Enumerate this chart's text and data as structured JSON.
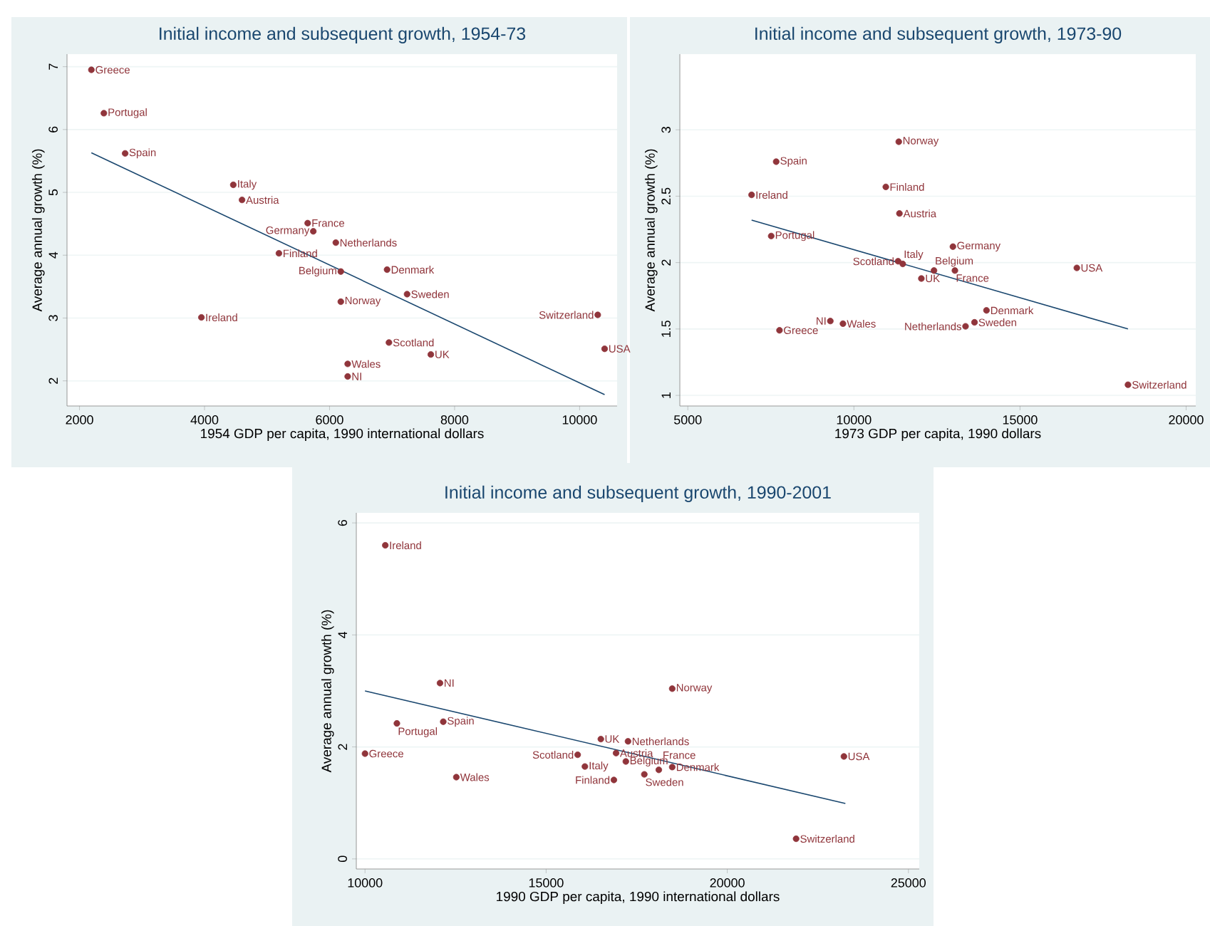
{
  "chart_data": [
    {
      "type": "scatter",
      "title": "Initial income and subsequent growth, 1954-73",
      "xlabel": "1954 GDP per capita, 1990 international dollars",
      "ylabel": "Average annual growth (%)",
      "xlim": [
        1800,
        10600
      ],
      "ylim": [
        1.6,
        7.2
      ],
      "xticks": [
        2000,
        4000,
        6000,
        8000,
        10000
      ],
      "yticks": [
        2,
        3,
        4,
        5,
        6,
        7
      ],
      "grid": "y",
      "series": [
        {
          "type": "scatter",
          "marker": "circle",
          "color": "#90353b",
          "x": [
            2190,
            2390,
            2730,
            4460,
            4600,
            5650,
            5740,
            6100,
            5190,
            6180,
            6920,
            7240,
            6180,
            3950,
            10290,
            10400,
            6950,
            7620,
            6290,
            6290
          ],
          "values": [
            6.95,
            6.26,
            5.62,
            5.12,
            4.88,
            4.51,
            4.38,
            4.2,
            4.03,
            3.74,
            3.77,
            3.38,
            3.26,
            3.01,
            3.05,
            2.51,
            2.61,
            2.42,
            2.27,
            2.07
          ]
        },
        {
          "type": "line",
          "marker": "none",
          "color": "#1a476f",
          "x": [
            2190,
            10400
          ],
          "values": [
            5.63,
            1.78
          ]
        }
      ],
      "annotations": [
        {
          "text": "Greece",
          "x": 2190,
          "y": 6.95
        },
        {
          "text": "Portugal",
          "x": 2390,
          "y": 6.26
        },
        {
          "text": "Spain",
          "x": 2730,
          "y": 5.62
        },
        {
          "text": "Italy",
          "x": 4460,
          "y": 5.12
        },
        {
          "text": "Austria",
          "x": 4600,
          "y": 4.88
        },
        {
          "text": "France",
          "x": 5650,
          "y": 4.51
        },
        {
          "text": "Germany",
          "x": 5740,
          "y": 4.38
        },
        {
          "text": "Netherlands",
          "x": 6100,
          "y": 4.2
        },
        {
          "text": "Finland",
          "x": 5190,
          "y": 4.03
        },
        {
          "text": "Belgium",
          "x": 6180,
          "y": 3.74
        },
        {
          "text": "Denmark",
          "x": 6920,
          "y": 3.77
        },
        {
          "text": "Sweden",
          "x": 7240,
          "y": 3.38
        },
        {
          "text": "Norway",
          "x": 6180,
          "y": 3.26
        },
        {
          "text": "Ireland",
          "x": 3950,
          "y": 3.01
        },
        {
          "text": "Switzerland",
          "x": 10290,
          "y": 3.05
        },
        {
          "text": "USA",
          "x": 10400,
          "y": 2.51
        },
        {
          "text": "Scotland",
          "x": 6950,
          "y": 2.61
        },
        {
          "text": "UK",
          "x": 7620,
          "y": 2.42
        },
        {
          "text": "Wales",
          "x": 6290,
          "y": 2.27
        },
        {
          "text": "NI",
          "x": 6290,
          "y": 2.07
        }
      ]
    },
    {
      "type": "scatter",
      "title": "Initial income and subsequent growth, 1973-90",
      "xlabel": "1973 GDP per capita, 1990 dollars",
      "ylabel": "Average annual growth (%)",
      "xlim": [
        4760,
        20290
      ],
      "ylim": [
        0.92,
        3.57
      ],
      "xticks": [
        5000,
        10000,
        15000,
        20000
      ],
      "yticks": [
        1,
        1.5,
        2,
        2.5,
        3
      ],
      "grid": "y",
      "series": [
        {
          "type": "scatter",
          "marker": "circle",
          "color": "#90353b",
          "x": [
            11350,
            7660,
            10960,
            6920,
            11370,
            7510,
            12980,
            11330,
            11470,
            12410,
            13040,
            16710,
            12030,
            13990,
            13630,
            13360,
            18250,
            7760,
            9290,
            9670
          ],
          "values": [
            2.91,
            2.76,
            2.57,
            2.51,
            2.37,
            2.2,
            2.12,
            2.01,
            1.99,
            1.94,
            1.94,
            1.96,
            1.88,
            1.64,
            1.55,
            1.52,
            1.08,
            1.49,
            1.56,
            1.54
          ]
        },
        {
          "type": "line",
          "marker": "none",
          "color": "#1a476f",
          "x": [
            6920,
            18250
          ],
          "values": [
            2.32,
            1.5
          ]
        }
      ],
      "annotations": [
        {
          "text": "Norway",
          "x": 11350,
          "y": 2.91
        },
        {
          "text": "Spain",
          "x": 7660,
          "y": 2.76
        },
        {
          "text": "Finland",
          "x": 10960,
          "y": 2.57
        },
        {
          "text": "Ireland",
          "x": 6920,
          "y": 2.51
        },
        {
          "text": "Austria",
          "x": 11370,
          "y": 2.37
        },
        {
          "text": "Portugal",
          "x": 7510,
          "y": 2.2
        },
        {
          "text": "Germany",
          "x": 12980,
          "y": 2.12
        },
        {
          "text": "Scotland",
          "x": 11330,
          "y": 2.01
        },
        {
          "text": "Italy",
          "x": 11470,
          "y": 1.99
        },
        {
          "text": "Belgium",
          "x": 12410,
          "y": 1.94
        },
        {
          "text": "France",
          "x": 13040,
          "y": 1.94
        },
        {
          "text": "USA",
          "x": 16710,
          "y": 1.96
        },
        {
          "text": "UK",
          "x": 12030,
          "y": 1.88
        },
        {
          "text": "Denmark",
          "x": 13990,
          "y": 1.64
        },
        {
          "text": "Sweden",
          "x": 13630,
          "y": 1.55
        },
        {
          "text": "Netherlands",
          "x": 13360,
          "y": 1.52
        },
        {
          "text": "Switzerland",
          "x": 18250,
          "y": 1.08
        },
        {
          "text": "Greece",
          "x": 7760,
          "y": 1.49
        },
        {
          "text": "NI",
          "x": 9290,
          "y": 1.56
        },
        {
          "text": "Wales",
          "x": 9670,
          "y": 1.54
        }
      ]
    },
    {
      "type": "scatter",
      "title": "Initial income and subsequent growth, 1990-2001",
      "xlabel": "1990 GDP per capita, 1990 international dollars",
      "ylabel": "Average annual growth (%)",
      "xlim": [
        9760,
        25300
      ],
      "ylim": [
        -0.18,
        6.18
      ],
      "xticks": [
        10000,
        15000,
        20000,
        25000
      ],
      "yticks": [
        0,
        2,
        4,
        6
      ],
      "grid": "y",
      "series": [
        {
          "type": "scatter",
          "marker": "circle",
          "color": "#90353b",
          "x": [
            10560,
            12070,
            18480,
            10880,
            12160,
            10000,
            12520,
            16510,
            17260,
            15870,
            16930,
            16070,
            17200,
            16870,
            17710,
            18110,
            18480,
            23220,
            21900
          ],
          "values": [
            5.6,
            3.14,
            3.04,
            2.42,
            2.45,
            1.88,
            1.46,
            2.14,
            2.1,
            1.86,
            1.89,
            1.65,
            1.74,
            1.41,
            1.51,
            1.59,
            1.64,
            1.83,
            0.36
          ]
        },
        {
          "type": "line",
          "marker": "none",
          "color": "#1a476f",
          "x": [
            10000,
            23260
          ],
          "values": [
            3.0,
            0.99
          ]
        }
      ],
      "annotations": [
        {
          "text": "Ireland",
          "x": 10560,
          "y": 5.6
        },
        {
          "text": "NI",
          "x": 12070,
          "y": 3.14
        },
        {
          "text": "Norway",
          "x": 18480,
          "y": 3.04
        },
        {
          "text": "Portugal",
          "x": 10880,
          "y": 2.42
        },
        {
          "text": "Spain",
          "x": 12160,
          "y": 2.45
        },
        {
          "text": "Greece",
          "x": 10000,
          "y": 1.88
        },
        {
          "text": "Wales",
          "x": 12520,
          "y": 1.46
        },
        {
          "text": "UK",
          "x": 16510,
          "y": 2.14
        },
        {
          "text": "Netherlands",
          "x": 17260,
          "y": 2.1
        },
        {
          "text": "Scotland",
          "x": 15870,
          "y": 1.86
        },
        {
          "text": "Austria",
          "x": 16930,
          "y": 1.89
        },
        {
          "text": "Italy",
          "x": 16070,
          "y": 1.65
        },
        {
          "text": "Belgium",
          "x": 17200,
          "y": 1.74
        },
        {
          "text": "Finland",
          "x": 16870,
          "y": 1.41
        },
        {
          "text": "Sweden",
          "x": 17710,
          "y": 1.51
        },
        {
          "text": "France",
          "x": 18110,
          "y": 1.59
        },
        {
          "text": "Denmark",
          "x": 18480,
          "y": 1.64
        },
        {
          "text": "USA",
          "x": 23220,
          "y": 1.83
        },
        {
          "text": "Switzerland",
          "x": 21900,
          "y": 0.36
        }
      ]
    }
  ]
}
